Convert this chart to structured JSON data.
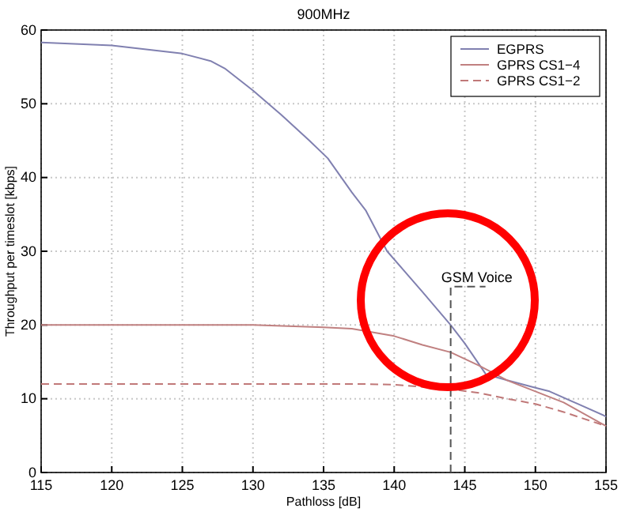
{
  "chart_data": {
    "type": "line",
    "title": "900MHz",
    "xlabel": "Pathloss  [dB]",
    "ylabel": "Throughput per timeslot [kbps]",
    "xlim": [
      115,
      155
    ],
    "xticks": [
      115,
      120,
      125,
      130,
      135,
      140,
      145,
      150,
      155
    ],
    "ylim": [
      0,
      60
    ],
    "yticks": [
      0,
      10,
      20,
      30,
      40,
      50,
      60
    ],
    "grid": true,
    "legend": "top right",
    "ref_lines": [
      {
        "axis": "x",
        "value": 144,
        "label": "GSM Voice",
        "color": "#555555",
        "line_style": "dashed"
      }
    ],
    "series": [
      {
        "name": "EGPRS",
        "color": "#8080b0",
        "line_style": "solid",
        "x": [
          115,
          120,
          125,
          127,
          128,
          129,
          130,
          132,
          134,
          135.3,
          137,
          138,
          139.5,
          142,
          144,
          145,
          146.5,
          148,
          150,
          151,
          153,
          155
        ],
        "values": [
          58.3,
          57.9,
          56.8,
          55.8,
          54.8,
          53.3,
          51.8,
          48.5,
          45,
          42.6,
          38,
          35.5,
          30,
          24.5,
          20,
          17.5,
          13.3,
          12.5,
          11.5,
          11,
          9.3,
          7.6
        ]
      },
      {
        "name": "GPRS CS1−4",
        "color": "#c08080",
        "line_style": "solid",
        "x": [
          115,
          130,
          135,
          137,
          140,
          142,
          144,
          146,
          148,
          150,
          152,
          155
        ],
        "values": [
          20,
          20,
          19.7,
          19.5,
          18.5,
          17.3,
          16.3,
          14.5,
          12.5,
          11,
          9.5,
          6.3
        ]
      },
      {
        "name": "GPRS CS1−2",
        "color": "#c07878",
        "line_style": "dashed",
        "x": [
          115,
          138,
          140,
          142,
          144,
          146,
          148,
          150,
          152,
          155
        ],
        "values": [
          12,
          12,
          11.9,
          11.6,
          11.3,
          10.8,
          10,
          9.3,
          8.2,
          6.3
        ]
      }
    ]
  }
}
